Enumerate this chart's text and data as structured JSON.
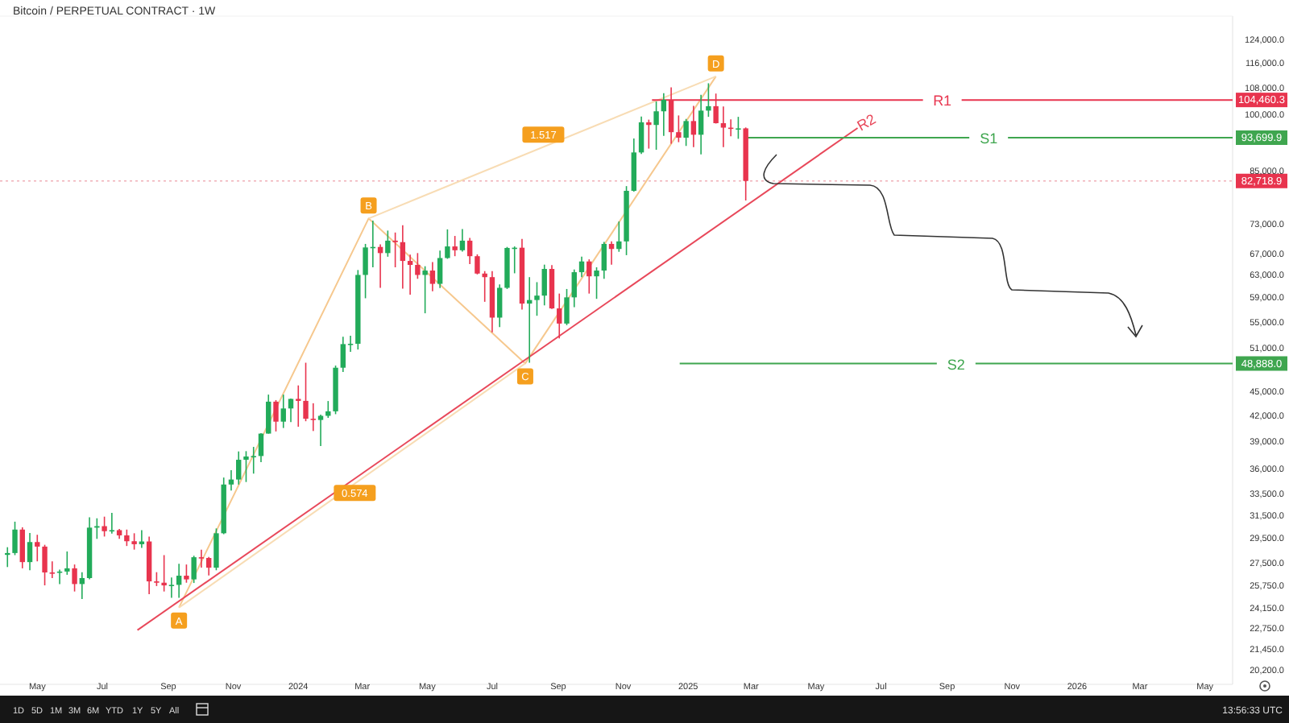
{
  "chart_data": {
    "type": "candlestick",
    "title": "Bitcoin / PERPETUAL CONTRACT · 1W",
    "log": true,
    "grid": false,
    "legend": false,
    "xlim": [
      "2023-03-27",
      "2026-05-27"
    ],
    "xticks": [
      {
        "value": "2023-05-01",
        "label": "May"
      },
      {
        "value": "2023-07-01",
        "label": "Jul"
      },
      {
        "value": "2023-09-01",
        "label": "Sep"
      },
      {
        "value": "2023-11-01",
        "label": "Nov"
      },
      {
        "value": "2024-01-01",
        "label": "2024"
      },
      {
        "value": "2024-03-01",
        "label": "Mar"
      },
      {
        "value": "2024-05-01",
        "label": "May"
      },
      {
        "value": "2024-07-01",
        "label": "Jul"
      },
      {
        "value": "2024-09-01",
        "label": "Sep"
      },
      {
        "value": "2024-11-01",
        "label": "Nov"
      },
      {
        "value": "2025-01-01",
        "label": "2025"
      },
      {
        "value": "2025-03-01",
        "label": "Mar"
      },
      {
        "value": "2025-05-01",
        "label": "May"
      },
      {
        "value": "2025-07-01",
        "label": "Jul"
      },
      {
        "value": "2025-09-01",
        "label": "Sep"
      },
      {
        "value": "2025-11-01",
        "label": "Nov"
      },
      {
        "value": "2026-01-01",
        "label": "2026"
      },
      {
        "value": "2026-03-01",
        "label": "Mar"
      },
      {
        "value": "2026-05-01",
        "label": "May"
      }
    ],
    "ylim": [
      19400,
      133000
    ],
    "yticks": [
      {
        "value": 124000,
        "label": "124,000.0"
      },
      {
        "value": 116000,
        "label": "116,000.0"
      },
      {
        "value": 108000,
        "label": "108,000.0"
      },
      {
        "value": 100000,
        "label": "100,000.0"
      },
      {
        "value": 85000,
        "label": "85,000.0"
      },
      {
        "value": 73000,
        "label": "73,000.0"
      },
      {
        "value": 67000,
        "label": "67,000.0"
      },
      {
        "value": 63000,
        "label": "63,000.0"
      },
      {
        "value": 59000,
        "label": "59,000.0"
      },
      {
        "value": 55000,
        "label": "55,000.0"
      },
      {
        "value": 51000,
        "label": "51,000.0"
      },
      {
        "value": 45000,
        "label": "45,000.0"
      },
      {
        "value": 42000,
        "label": "42,000.0"
      },
      {
        "value": 39000,
        "label": "39,000.0"
      },
      {
        "value": 36000,
        "label": "36,000.0"
      },
      {
        "value": 33500,
        "label": "33,500.0"
      },
      {
        "value": 31500,
        "label": "31,500.0"
      },
      {
        "value": 29500,
        "label": "29,500.0"
      },
      {
        "value": 27500,
        "label": "27,500.0"
      },
      {
        "value": 25750,
        "label": "25,750.0"
      },
      {
        "value": 24150,
        "label": "24,150.0"
      },
      {
        "value": 22750,
        "label": "22,750.0"
      },
      {
        "value": 21450,
        "label": "21,450.0"
      },
      {
        "value": 20200,
        "label": "20,200.0"
      }
    ],
    "x": [
      "2023-04-03",
      "2023-04-10",
      "2023-04-17",
      "2023-04-24",
      "2023-05-01",
      "2023-05-08",
      "2023-05-15",
      "2023-05-22",
      "2023-05-29",
      "2023-06-05",
      "2023-06-12",
      "2023-06-19",
      "2023-06-26",
      "2023-07-03",
      "2023-07-10",
      "2023-07-17",
      "2023-07-24",
      "2023-07-31",
      "2023-08-07",
      "2023-08-14",
      "2023-08-21",
      "2023-08-28",
      "2023-09-04",
      "2023-09-11",
      "2023-09-18",
      "2023-09-25",
      "2023-10-02",
      "2023-10-09",
      "2023-10-16",
      "2023-10-23",
      "2023-10-30",
      "2023-11-06",
      "2023-11-13",
      "2023-11-20",
      "2023-11-27",
      "2023-12-04",
      "2023-12-11",
      "2023-12-18",
      "2023-12-25",
      "2024-01-01",
      "2024-01-08",
      "2024-01-15",
      "2024-01-22",
      "2024-01-29",
      "2024-02-05",
      "2024-02-12",
      "2024-02-19",
      "2024-02-26",
      "2024-03-04",
      "2024-03-11",
      "2024-03-18",
      "2024-03-25",
      "2024-04-01",
      "2024-04-08",
      "2024-04-15",
      "2024-04-22",
      "2024-04-29",
      "2024-05-06",
      "2024-05-13",
      "2024-05-20",
      "2024-05-27",
      "2024-06-03",
      "2024-06-10",
      "2024-06-17",
      "2024-06-24",
      "2024-07-01",
      "2024-07-08",
      "2024-07-15",
      "2024-07-22",
      "2024-07-29",
      "2024-08-05",
      "2024-08-12",
      "2024-08-19",
      "2024-08-26",
      "2024-09-02",
      "2024-09-09",
      "2024-09-16",
      "2024-09-23",
      "2024-09-30",
      "2024-10-07",
      "2024-10-14",
      "2024-10-21",
      "2024-10-28",
      "2024-11-04",
      "2024-11-11",
      "2024-11-18",
      "2024-11-25",
      "2024-12-02",
      "2024-12-09",
      "2024-12-16",
      "2024-12-23",
      "2024-12-30",
      "2025-01-06",
      "2025-01-13",
      "2025-01-20",
      "2025-01-27",
      "2025-02-03",
      "2025-02-10",
      "2025-02-17",
      "2025-02-24"
    ],
    "ohlc": [
      [
        28170,
        28800,
        27200,
        28320
      ],
      [
        28320,
        31000,
        28150,
        30300
      ],
      [
        30300,
        30500,
        27100,
        27590
      ],
      [
        27590,
        30000,
        26950,
        29230
      ],
      [
        29230,
        29850,
        27650,
        28850
      ],
      [
        28850,
        29000,
        25800,
        26780
      ],
      [
        26780,
        27650,
        26350,
        26750
      ],
      [
        26750,
        27000,
        25900,
        26850
      ],
      [
        26850,
        28450,
        26600,
        27100
      ],
      [
        27100,
        27400,
        25350,
        25900
      ],
      [
        25900,
        26800,
        24800,
        26350
      ],
      [
        26350,
        31400,
        26250,
        30470
      ],
      [
        30470,
        31300,
        29500,
        30600
      ],
      [
        30600,
        31450,
        29700,
        30160
      ],
      [
        30160,
        31800,
        29950,
        30250
      ],
      [
        30250,
        30350,
        29500,
        29800
      ],
      [
        29800,
        30300,
        28900,
        29300
      ],
      [
        29300,
        29980,
        28600,
        29050
      ],
      [
        29050,
        30250,
        28750,
        29280
      ],
      [
        29280,
        29700,
        25150,
        26100
      ],
      [
        26100,
        26800,
        25750,
        26000
      ],
      [
        26000,
        28150,
        25350,
        25800
      ],
      [
        25800,
        26400,
        24900,
        25840
      ],
      [
        25840,
        27450,
        24900,
        26530
      ],
      [
        26530,
        27400,
        26000,
        26250
      ],
      [
        26250,
        28100,
        25980,
        27980
      ],
      [
        27980,
        28600,
        27150,
        27920
      ],
      [
        27920,
        28000,
        26550,
        27150
      ],
      [
        27150,
        30400,
        26950,
        29980
      ],
      [
        29980,
        35200,
        29900,
        34500
      ],
      [
        34500,
        35950,
        33900,
        35000
      ],
      [
        35000,
        37950,
        34500,
        37050
      ],
      [
        37050,
        37980,
        34750,
        37400
      ],
      [
        37400,
        38450,
        35600,
        37450
      ],
      [
        37450,
        40000,
        36800,
        39950
      ],
      [
        39950,
        44700,
        39950,
        43800
      ],
      [
        43800,
        44000,
        40200,
        41350
      ],
      [
        41350,
        44700,
        40600,
        42950
      ],
      [
        42950,
        44200,
        41300,
        44150
      ],
      [
        44150,
        45900,
        40750,
        43900
      ],
      [
        43900,
        49000,
        41400,
        41700
      ],
      [
        41700,
        43600,
        40250,
        41550
      ],
      [
        41550,
        42200,
        38550,
        42050
      ],
      [
        42050,
        43880,
        41800,
        42600
      ],
      [
        42600,
        48600,
        42250,
        48300
      ],
      [
        48300,
        52800,
        47700,
        51700
      ],
      [
        51700,
        52950,
        50550,
        51750
      ],
      [
        51750,
        64000,
        50900,
        63100
      ],
      [
        63100,
        69000,
        59000,
        68300
      ],
      [
        68300,
        73800,
        64500,
        68400
      ],
      [
        68400,
        68900,
        60800,
        67200
      ],
      [
        67200,
        71700,
        66500,
        69650
      ],
      [
        69650,
        71300,
        64500,
        69350
      ],
      [
        69350,
        72800,
        60650,
        65700
      ],
      [
        65700,
        66900,
        59600,
        64950
      ],
      [
        64950,
        67200,
        62400,
        63100
      ],
      [
        63100,
        64700,
        56500,
        63900
      ],
      [
        63900,
        65500,
        60200,
        61500
      ],
      [
        61500,
        67700,
        60750,
        66250
      ],
      [
        66250,
        71950,
        66100,
        68500
      ],
      [
        68500,
        70600,
        66600,
        67750
      ],
      [
        67750,
        72000,
        67500,
        69650
      ],
      [
        69650,
        70200,
        65100,
        66600
      ],
      [
        66600,
        66950,
        63200,
        63350
      ],
      [
        63350,
        63800,
        58400,
        62700
      ],
      [
        62700,
        63800,
        53500,
        55800
      ],
      [
        55800,
        61400,
        54300,
        60800
      ],
      [
        60800,
        68400,
        60600,
        68200
      ],
      [
        68200,
        68500,
        63400,
        68250
      ],
      [
        68250,
        70000,
        57100,
        58100
      ],
      [
        58100,
        62700,
        49000,
        58700
      ],
      [
        58700,
        61800,
        56100,
        59450
      ],
      [
        59450,
        65000,
        57800,
        64200
      ],
      [
        64200,
        64900,
        57200,
        57300
      ],
      [
        57300,
        59800,
        52550,
        54850
      ],
      [
        54850,
        60600,
        54600,
        59150
      ],
      [
        59150,
        64100,
        57500,
        63600
      ],
      [
        63600,
        66500,
        62700,
        65600
      ],
      [
        65600,
        66000,
        59800,
        62850
      ],
      [
        62850,
        64500,
        58900,
        63900
      ],
      [
        63900,
        69400,
        62400,
        69000
      ],
      [
        69000,
        69500,
        65000,
        68000
      ],
      [
        68000,
        73600,
        67450,
        69500
      ],
      [
        69500,
        81500,
        66800,
        80400
      ],
      [
        80400,
        93500,
        80200,
        89800
      ],
      [
        89800,
        99600,
        89400,
        97950
      ],
      [
        97950,
        98700,
        90800,
        97200
      ],
      [
        97200,
        104000,
        90500,
        101100
      ],
      [
        101100,
        106500,
        94200,
        104500
      ],
      [
        104500,
        108300,
        92100,
        95200
      ],
      [
        95200,
        99900,
        92500,
        93700
      ],
      [
        93700,
        98900,
        91500,
        98300
      ],
      [
        98300,
        102700,
        91200,
        94500
      ],
      [
        94500,
        106000,
        89300,
        101300
      ],
      [
        101300,
        109600,
        99500,
        102600
      ],
      [
        102600,
        106400,
        97600,
        97700
      ],
      [
        97700,
        102500,
        91200,
        96450
      ],
      [
        96450,
        98800,
        94100,
        96150
      ],
      [
        96150,
        99500,
        93400,
        96250
      ],
      [
        96250,
        96500,
        78200,
        82718.9
      ]
    ],
    "colors": [
      "#22ab5a",
      "#22ab5a",
      "#e8344e",
      "#22ab5a",
      "#e8344e",
      "#e8344e",
      "#e8344e",
      "#22ab5a",
      "#22ab5a",
      "#e8344e",
      "#22ab5a",
      "#22ab5a",
      "#22ab5a",
      "#e8344e",
      "#22ab5a",
      "#e8344e",
      "#e8344e",
      "#e8344e",
      "#22ab5a",
      "#e8344e",
      "#e8344e",
      "#e8344e",
      "#22ab5a",
      "#22ab5a",
      "#e8344e",
      "#22ab5a",
      "#e8344e",
      "#e8344e",
      "#22ab5a",
      "#22ab5a",
      "#22ab5a",
      "#22ab5a",
      "#22ab5a",
      "#22ab5a",
      "#22ab5a",
      "#22ab5a",
      "#e8344e",
      "#22ab5a",
      "#22ab5a",
      "#e8344e",
      "#e8344e",
      "#e8344e",
      "#22ab5a",
      "#22ab5a",
      "#22ab5a",
      "#22ab5a",
      "#22ab5a",
      "#22ab5a",
      "#22ab5a",
      "#22ab5a",
      "#e8344e",
      "#22ab5a",
      "#e8344e",
      "#e8344e",
      "#e8344e",
      "#e8344e",
      "#22ab5a",
      "#e8344e",
      "#22ab5a",
      "#22ab5a",
      "#e8344e",
      "#22ab5a",
      "#e8344e",
      "#e8344e",
      "#e8344e",
      "#e8344e",
      "#22ab5a",
      "#22ab5a",
      "#22ab5a",
      "#e8344e",
      "#22ab5a",
      "#22ab5a",
      "#22ab5a",
      "#e8344e",
      "#e8344e",
      "#22ab5a",
      "#22ab5a",
      "#22ab5a",
      "#e8344e",
      "#22ab5a",
      "#22ab5a",
      "#e8344e",
      "#22ab5a",
      "#22ab5a",
      "#22ab5a",
      "#22ab5a",
      "#e8344e",
      "#22ab5a",
      "#22ab5a",
      "#e8344e",
      "#e8344e",
      "#22ab5a",
      "#e8344e",
      "#22ab5a",
      "#22ab5a",
      "#e8344e",
      "#e8344e",
      "#e8344e",
      "#22ab5a",
      "#e8344e"
    ],
    "value_labels": [
      null,
      null,
      null,
      null,
      null,
      null,
      null,
      null,
      null,
      null,
      null,
      null,
      null,
      null,
      null,
      null,
      null,
      null,
      null,
      null,
      null,
      null,
      null,
      null,
      null,
      null,
      null,
      null,
      null,
      null,
      null,
      null,
      null,
      null,
      null,
      null,
      null,
      null,
      null,
      null,
      null,
      null,
      null,
      null,
      null,
      null,
      null,
      null,
      null,
      null,
      null,
      null,
      null,
      null,
      null,
      null,
      null,
      null,
      null,
      null,
      null,
      null,
      null,
      null,
      null,
      null,
      null,
      null,
      null,
      null,
      null,
      null,
      null,
      null,
      null,
      null,
      null,
      null,
      null,
      null,
      null,
      null,
      null,
      null,
      null,
      null,
      null,
      null,
      null,
      null,
      null,
      null,
      null,
      null,
      null,
      null,
      null,
      null,
      null,
      "82,718.9"
    ],
    "series": [
      {
        "type": "line",
        "color": "#f6c88e",
        "marker": "none",
        "x": [
          "2023-09-11",
          "2024-03-07",
          "2024-08-01",
          "2025-01-27"
        ],
        "values": [
          24200,
          74250,
          48900,
          111800
        ]
      },
      {
        "type": "line",
        "color": "#f8dcb4",
        "x": [
          "2024-03-07",
          "2025-01-27"
        ],
        "values": [
          74250,
          111800
        ]
      },
      {
        "type": "line",
        "color": "#f8dcb4",
        "x": [
          "2023-09-11",
          "2024-08-01"
        ],
        "values": [
          24200,
          48900
        ]
      },
      {
        "type": "line",
        "name": "R2",
        "color": "#e8485a",
        "x": [
          "2023-08-03",
          "2025-06-09"
        ],
        "values": [
          22680,
          96350
        ]
      },
      {
        "type": "line",
        "name": "R1",
        "color": "#e8344e",
        "x": [
          "2024-11-28",
          "2026-05-27"
        ],
        "values": [
          104460.3,
          104460.3
        ],
        "value_labels": [
          null,
          "104,460.3"
        ]
      },
      {
        "type": "line",
        "name": "S1",
        "color": "#3fa64f",
        "x": [
          "2025-02-23",
          "2026-05-27"
        ],
        "values": [
          93699.9,
          93699.9
        ],
        "value_labels": [
          null,
          "93,699.9"
        ]
      },
      {
        "type": "line",
        "name": "S2",
        "color": "#3fa64f",
        "x": [
          "2024-12-24",
          "2026-05-27"
        ],
        "values": [
          48888,
          48888
        ],
        "value_labels": [
          null,
          "48,888.0"
        ]
      }
    ],
    "ref_lines": [
      {
        "axis": "y",
        "value": 82718.9,
        "color": "#f0b0b8",
        "line_style": "dotted"
      }
    ],
    "annotations": [
      {
        "text": "A",
        "x": "2023-09-11",
        "y": 24200
      },
      {
        "text": "B",
        "x": "2024-03-07",
        "y": 74250
      },
      {
        "text": "C",
        "x": "2024-08-01",
        "y": 48900
      },
      {
        "text": "D",
        "x": "2025-01-27",
        "y": 111800
      },
      {
        "text": "1.517",
        "x": "2024-08-18",
        "y": 91100
      },
      {
        "text": "0.574",
        "x": "2024-02-23",
        "y": 34950
      },
      "1D",
      "5D",
      "1M",
      "3M",
      "6M",
      "YTD",
      "1Y",
      "5Y",
      "All",
      "13:56:33 UTC"
    ]
  }
}
